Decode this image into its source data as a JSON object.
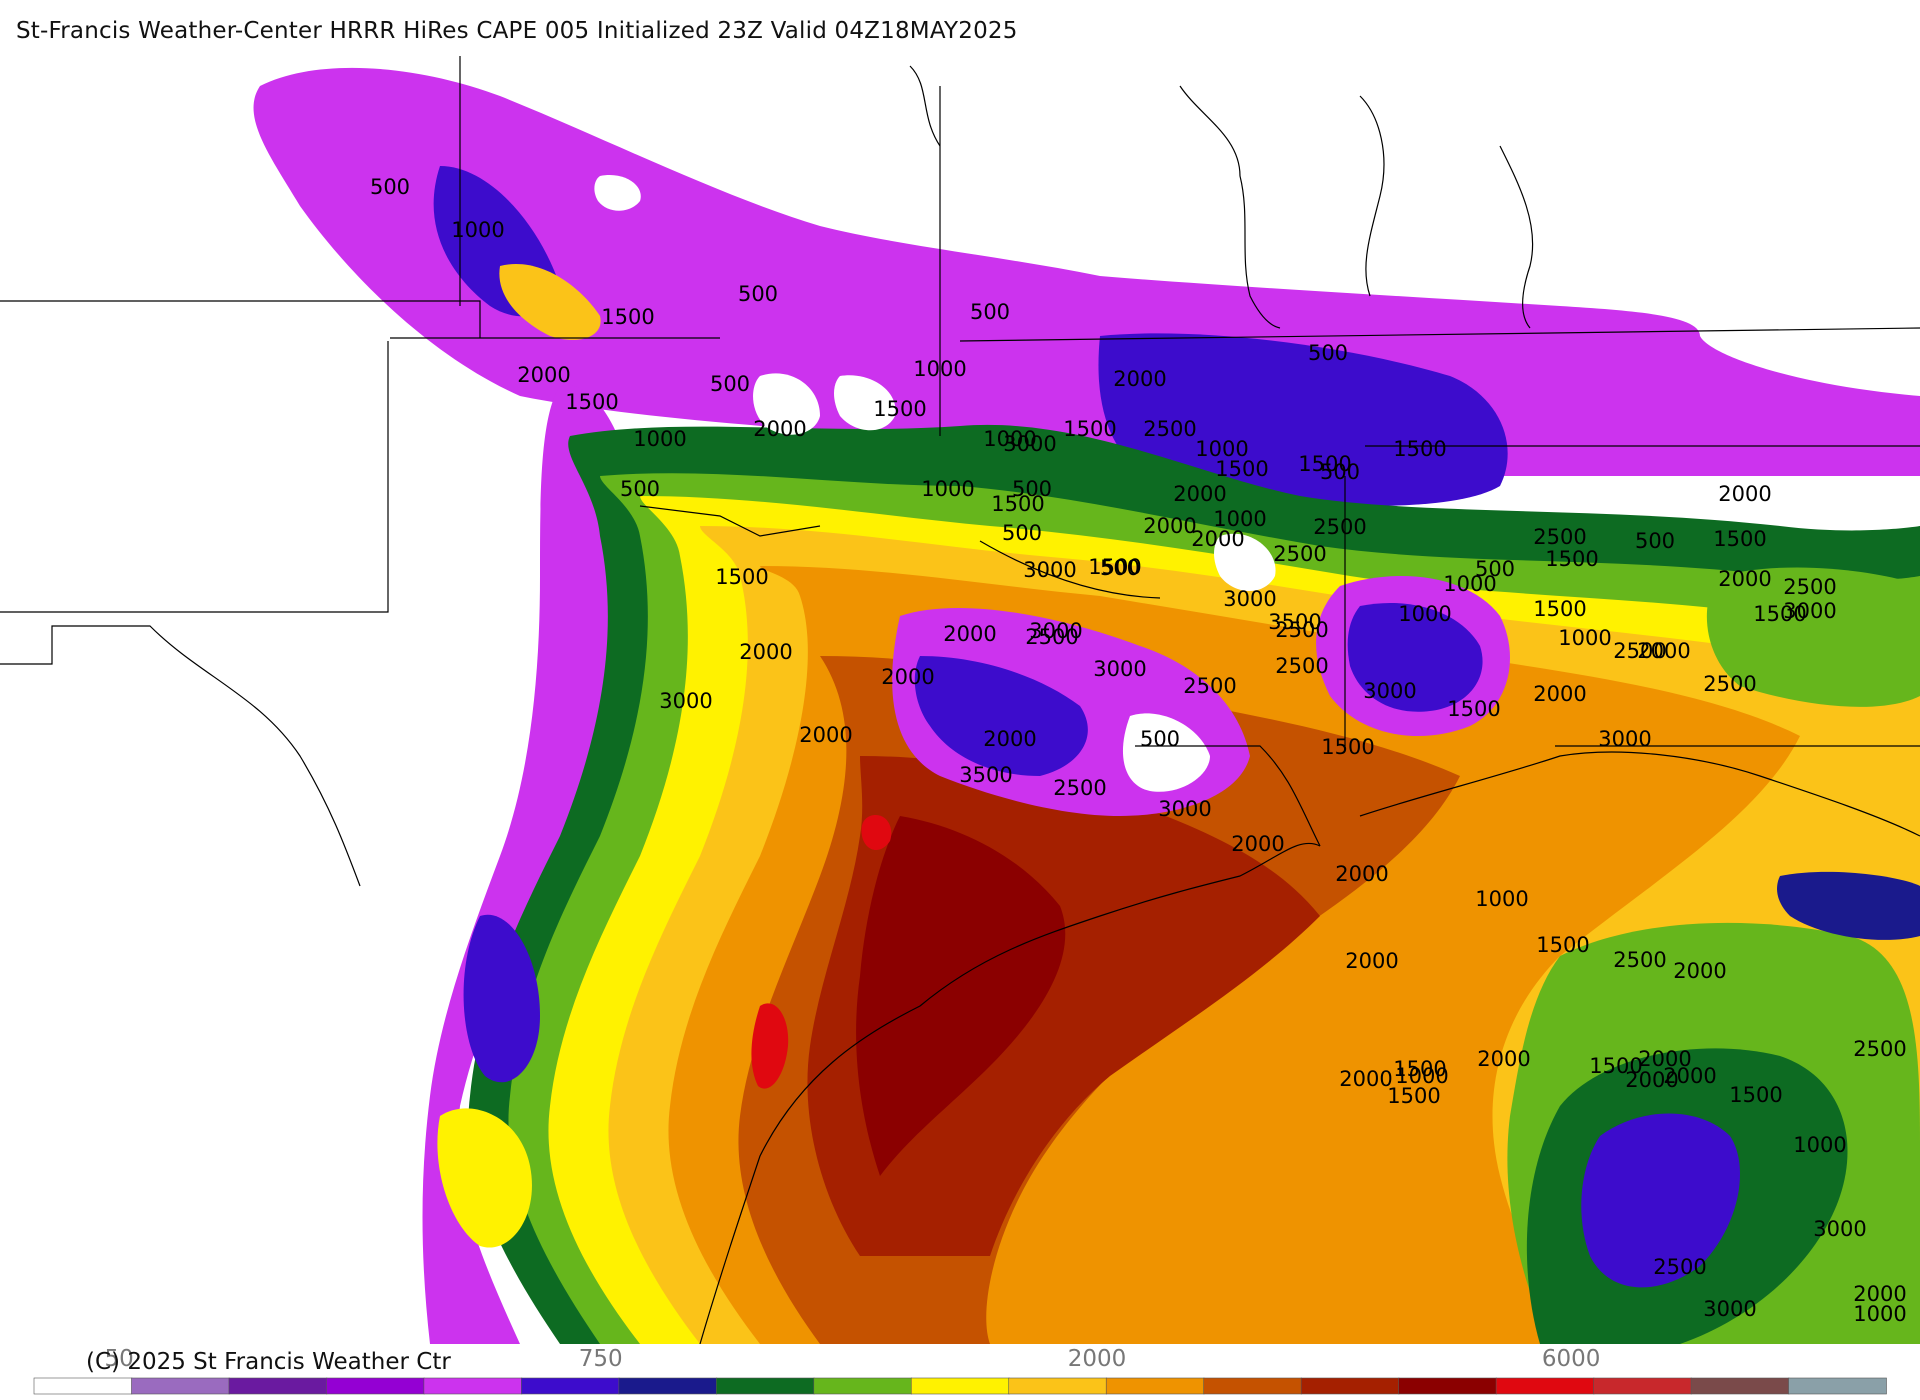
{
  "header": {
    "title": "St-Francis Weather-Center HRRR HiRes CAPE  005 Initialized  23Z Valid 04Z18MAY2025"
  },
  "footer": {
    "copyright": "(C) 2025 St Francis Weather Ctr"
  },
  "colors": {
    "bins": [
      "#ffffff",
      "#9a6bbf",
      "#6a1aa0",
      "#9400d3",
      "#cc33ee",
      "#3d0ccc",
      "#1a1a8c",
      "#0d6b22",
      "#66b61c",
      "#fff200",
      "#fbc318",
      "#ef9300",
      "#c55200",
      "#a52000",
      "#8b0000",
      "#e00810",
      "#c8282c",
      "#7a4a4a",
      "#8aa0a8",
      "#a8d8e0"
    ]
  },
  "legend": {
    "ticks": [
      {
        "value": "50",
        "frac": 0.046
      },
      {
        "value": "750",
        "frac": 0.306
      },
      {
        "value": "2000",
        "frac": 0.574
      },
      {
        "value": "6000",
        "frac": 0.83
      }
    ],
    "colors_count": 19
  },
  "map": {
    "contour_labels": [
      "500",
      "1000",
      "500",
      "1500",
      "500",
      "2000",
      "1500",
      "1000",
      "500",
      "1500",
      "2000",
      "500",
      "1000",
      "1500",
      "2000",
      "2500",
      "3000",
      "1000",
      "1500",
      "500",
      "1500",
      "2000",
      "2500",
      "1000",
      "500",
      "1000",
      "500",
      "1500",
      "500",
      "1000",
      "1500",
      "2000",
      "2500",
      "3000",
      "3500",
      "2500",
      "2000",
      "3000",
      "1500",
      "500",
      "1000",
      "500",
      "1500",
      "2000",
      "1500",
      "500",
      "2000",
      "2500",
      "1000",
      "1500",
      "2000",
      "2500",
      "1500",
      "2000",
      "3000",
      "2500",
      "2000",
      "2500",
      "3000",
      "2500",
      "3000",
      "2000",
      "1500",
      "1000",
      "2500",
      "3000",
      "2500",
      "3000",
      "1500",
      "2000",
      "500",
      "1500",
      "2000",
      "2000",
      "3000",
      "3500",
      "2500",
      "3000",
      "2000",
      "2000",
      "1000",
      "1500",
      "2500",
      "2000",
      "2000",
      "1500",
      "1000",
      "2000",
      "2000",
      "1500",
      "1500",
      "2000",
      "2500",
      "2000",
      "2000",
      "1500",
      "1000",
      "3000",
      "2500",
      "2000",
      "1000",
      "3000"
    ]
  }
}
